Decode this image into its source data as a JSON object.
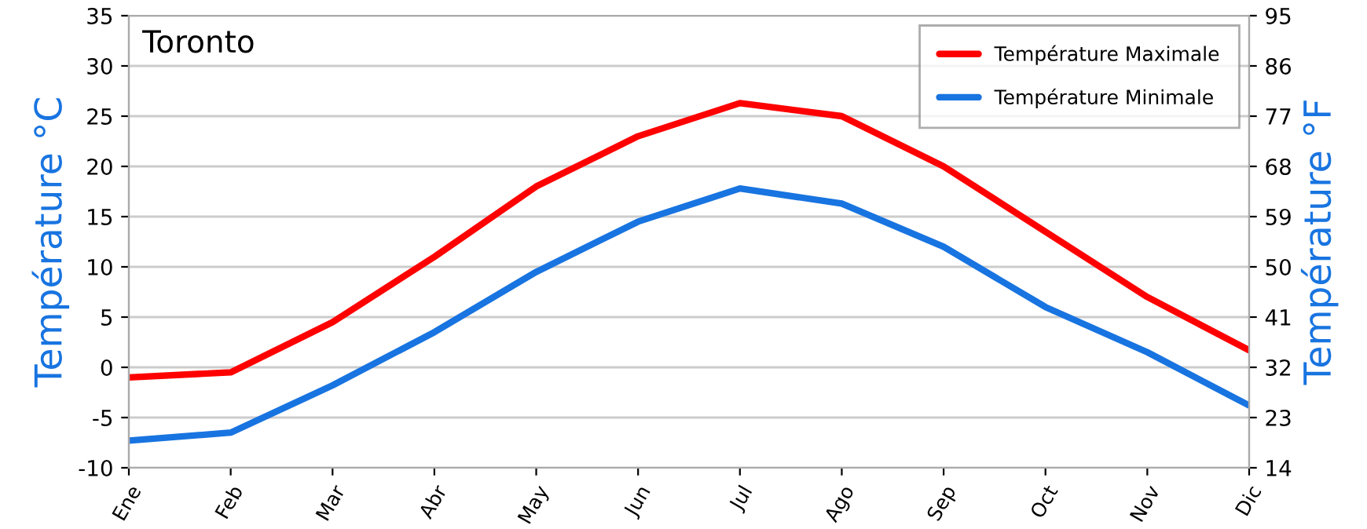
{
  "chart_data": {
    "type": "line",
    "title": "Toronto",
    "categories": [
      "Ene",
      "Feb",
      "Mar",
      "Abr",
      "May",
      "Jun",
      "Jul",
      "Ago",
      "Sep",
      "Oct",
      "Nov",
      "Dic"
    ],
    "series": [
      {
        "name": "Température Maximale",
        "color": "#ff0000",
        "values": [
          -1,
          -0.5,
          4.5,
          11,
          18,
          23,
          26.3,
          25,
          20,
          13.5,
          7,
          1.7
        ]
      },
      {
        "name": "Température Minimale",
        "color": "#1874e0",
        "values": [
          -7.3,
          -6.5,
          -1.8,
          3.5,
          9.5,
          14.5,
          17.8,
          16.3,
          12,
          6,
          1.5,
          -3.8
        ]
      }
    ],
    "ylabel": "Température °C",
    "y2label": "Température °F",
    "ylim": [
      -10,
      35
    ],
    "yticks": [
      -10,
      -5,
      0,
      5,
      10,
      15,
      20,
      25,
      30,
      35
    ],
    "y2lim": [
      14,
      95
    ],
    "y2ticks": [
      14,
      23,
      32,
      41,
      50,
      59,
      68,
      77,
      86,
      95
    ],
    "grid": "y",
    "legend": "top right",
    "marker": "none",
    "line_style": "solid"
  }
}
